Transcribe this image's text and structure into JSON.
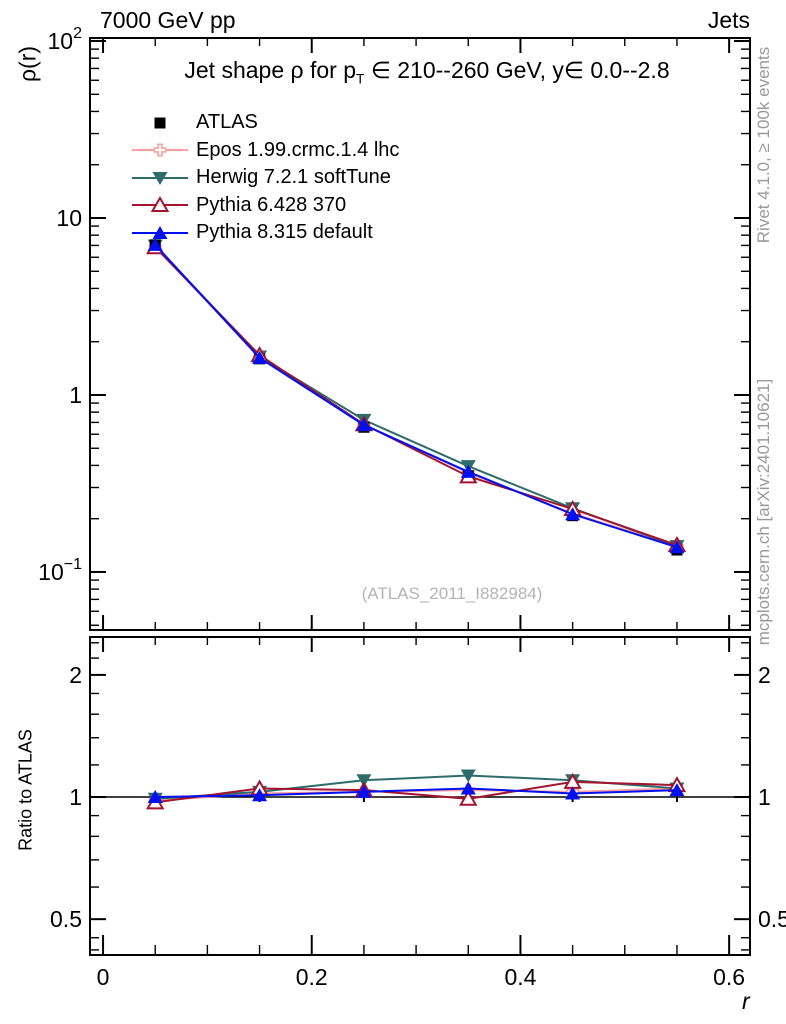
{
  "header": {
    "left": "7000 GeV pp",
    "right": "Jets"
  },
  "title": {
    "pre": "Jet shape ρ for p",
    "sub": "T",
    "post": " ∈ 210--260 GeV, y∈ 0.0--2.8"
  },
  "watermark": "(ATLAS_2011_I882984)",
  "side_notes": {
    "top": "Rivet 4.1.0, ≥ 100k events",
    "bottom": "mcplots.cern.ch [arXiv:2401.10621]"
  },
  "axes": {
    "x": {
      "label": "r",
      "range": [
        -0.0125,
        0.62
      ],
      "majors": [
        {
          "v": 0,
          "label": "0"
        },
        {
          "v": 0.2,
          "label": "0.2"
        },
        {
          "v": 0.4,
          "label": "0.4"
        },
        {
          "v": 0.6,
          "label": "0.6"
        }
      ],
      "minor_step": 0.05
    },
    "top_y": {
      "label": "ρ(r)",
      "scale": "log",
      "range": [
        0.047,
        104
      ],
      "majors": [
        {
          "v": 100,
          "base": "10",
          "exp": "2"
        },
        {
          "v": 10,
          "label": "10"
        },
        {
          "v": 1,
          "label": "1"
        },
        {
          "v": 0.1,
          "base": "10",
          "exp": "−1"
        }
      ]
    },
    "ratio_y": {
      "label": "Ratio to ATLAS",
      "scale": "log",
      "range": [
        0.408,
        2.48
      ],
      "majors": [
        {
          "v": 2,
          "label": "2"
        },
        {
          "v": 1,
          "label": "1"
        },
        {
          "v": 0.5,
          "label": "0.5"
        }
      ],
      "minors": [
        0.42,
        0.45,
        0.6,
        0.7,
        0.8,
        0.9,
        1.2,
        1.4,
        1.6,
        1.8,
        2.2,
        2.4
      ]
    }
  },
  "chart_data": {
    "type": "line",
    "title": "Jet shape ρ for pT ∈ 210--260 GeV, y ∈ 0.0--2.8",
    "xlabel": "r",
    "ylabel": "ρ(r)",
    "ratio_label": "Ratio to ATLAS",
    "x": [
      0.05,
      0.15,
      0.25,
      0.35,
      0.45,
      0.55
    ],
    "xlim": [
      -0.0125,
      0.62
    ],
    "top_ylim": [
      0.047,
      104
    ],
    "ratio_ylim": [
      0.408,
      2.48
    ],
    "legend_position": "top-left-inside",
    "grid": false,
    "series": [
      {
        "name": "ATLAS",
        "slug": "atlas",
        "color": "#000000",
        "marker": "square",
        "line": false,
        "reference": true,
        "values": [
          7.05,
          1.6,
          0.657,
          0.35,
          0.208,
          0.133
        ],
        "ratio": [
          1,
          1,
          1,
          1,
          1,
          1
        ]
      },
      {
        "name": "Epos 1.99.crmc.1.4 lhc",
        "slug": "epos",
        "color": "#ff9e9e",
        "marker": "plus-open",
        "line": true,
        "values": [
          6.91,
          1.63,
          0.68,
          0.364,
          0.214,
          0.14
        ],
        "ratio": [
          0.98,
          1.02,
          1.03,
          1.04,
          1.03,
          1.05
        ]
      },
      {
        "name": "Herwig 7.2.1 softTune",
        "slug": "herwig",
        "color": "#2e6b6b",
        "marker": "tri-down",
        "line": true,
        "values": [
          6.98,
          1.65,
          0.723,
          0.396,
          0.229,
          0.14
        ],
        "ratio": [
          0.99,
          1.03,
          1.1,
          1.13,
          1.1,
          1.05
        ]
      },
      {
        "name": "Pythia 6.428 370",
        "slug": "pythia6",
        "color": "#a2142f",
        "marker": "tri-up-open",
        "line": true,
        "values": [
          6.84,
          1.68,
          0.683,
          0.347,
          0.227,
          0.142
        ],
        "ratio": [
          0.97,
          1.05,
          1.04,
          0.99,
          1.09,
          1.07
        ]
      },
      {
        "name": "Pythia 8.315 default",
        "slug": "pythia8",
        "color": "#0010ee",
        "marker": "tri-up",
        "line": true,
        "values": [
          7.05,
          1.62,
          0.677,
          0.368,
          0.212,
          0.138
        ],
        "ratio": [
          1.0,
          1.01,
          1.03,
          1.05,
          1.02,
          1.04
        ]
      }
    ]
  }
}
